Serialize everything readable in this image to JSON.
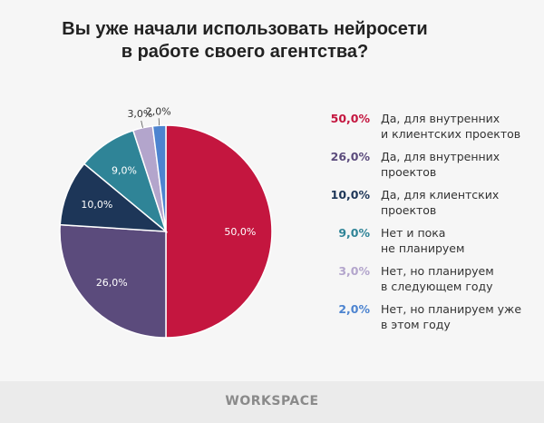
{
  "chart_data": {
    "type": "pie",
    "title": "Вы уже начали использовать нейросети в работе своего агентства?",
    "title_lines": [
      "Вы уже начали использовать нейросети",
      "в работе своего агентства?"
    ],
    "legend_position": "right",
    "slices": [
      {
        "value": 50.0,
        "label": "50,0%",
        "legend": [
          "Да, для внутренних",
          "и клиентских проектов"
        ],
        "color": "#c4163f"
      },
      {
        "value": 26.0,
        "label": "26,0%",
        "legend": [
          "Да, для внутренних",
          "проектов"
        ],
        "color": "#5b4b7c"
      },
      {
        "value": 10.0,
        "label": "10,0%",
        "legend": [
          "Да, для клиентских",
          "проектов"
        ],
        "color": "#1d3658"
      },
      {
        "value": 9.0,
        "label": "9,0%",
        "legend": [
          "Нет и пока",
          "не планируем"
        ],
        "color": "#2f8497"
      },
      {
        "value": 3.0,
        "label": "3,0%",
        "legend": [
          "Нет, но планируем",
          "в следующем году"
        ],
        "color": "#b3a5cc"
      },
      {
        "value": 2.0,
        "label": "2,0%",
        "legend": [
          "Нет, но планируем уже",
          "в этом году"
        ],
        "color": "#4d84d0"
      }
    ]
  },
  "footer": {
    "logo": "WORKSPACE"
  }
}
